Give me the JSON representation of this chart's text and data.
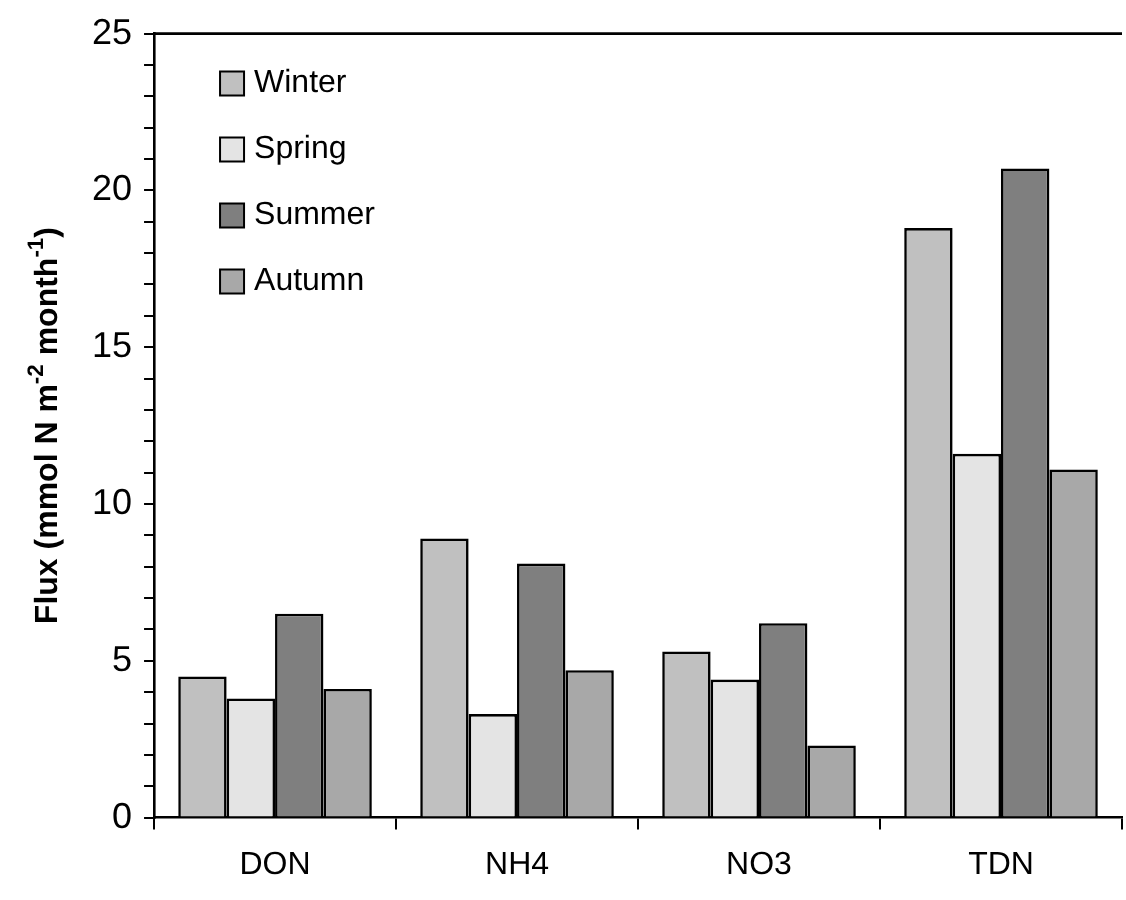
{
  "chart_data": {
    "type": "bar",
    "ylabel": "Flux (mmol N m$^{-2}$ month$^{-1}$)",
    "categories": [
      "DON",
      "NH4",
      "NO3",
      "TDN"
    ],
    "series": [
      {
        "name": "Winter",
        "color": "#c0c0c0",
        "values": [
          4.5,
          8.9,
          5.3,
          18.8
        ]
      },
      {
        "name": "Spring",
        "color": "#e4e4e4",
        "values": [
          3.8,
          3.3,
          4.4,
          11.6
        ]
      },
      {
        "name": "Summer",
        "color": "#7f7f7f",
        "values": [
          6.5,
          8.1,
          6.2,
          20.7
        ]
      },
      {
        "name": "Autumn",
        "color": "#a8a8a8",
        "values": [
          4.1,
          4.7,
          2.3,
          11.1
        ]
      }
    ],
    "ylim": [
      0,
      25
    ],
    "yticks": [
      0,
      {
        "value": 1,
        "label": null
      },
      {
        "value": 2,
        "label": null
      },
      {
        "value": 3,
        "label": null
      },
      {
        "value": 4,
        "label": null
      },
      5,
      {
        "value": 6,
        "label": null
      },
      {
        "value": 7,
        "label": null
      },
      {
        "value": 8,
        "label": null
      },
      {
        "value": 9,
        "label": null
      },
      10,
      {
        "value": 11,
        "label": null
      },
      {
        "value": 12,
        "label": null
      },
      {
        "value": 13,
        "label": null
      },
      {
        "value": 14,
        "label": null
      },
      15,
      {
        "value": 16,
        "label": null
      },
      {
        "value": 17,
        "label": null
      },
      {
        "value": 18,
        "label": null
      },
      {
        "value": 19,
        "label": null
      },
      20,
      {
        "value": 21,
        "label": null
      },
      {
        "value": 22,
        "label": null
      },
      {
        "value": 23,
        "label": null
      },
      {
        "value": 24,
        "label": null
      },
      25
    ],
    "grid": false,
    "legend": "top left"
  }
}
